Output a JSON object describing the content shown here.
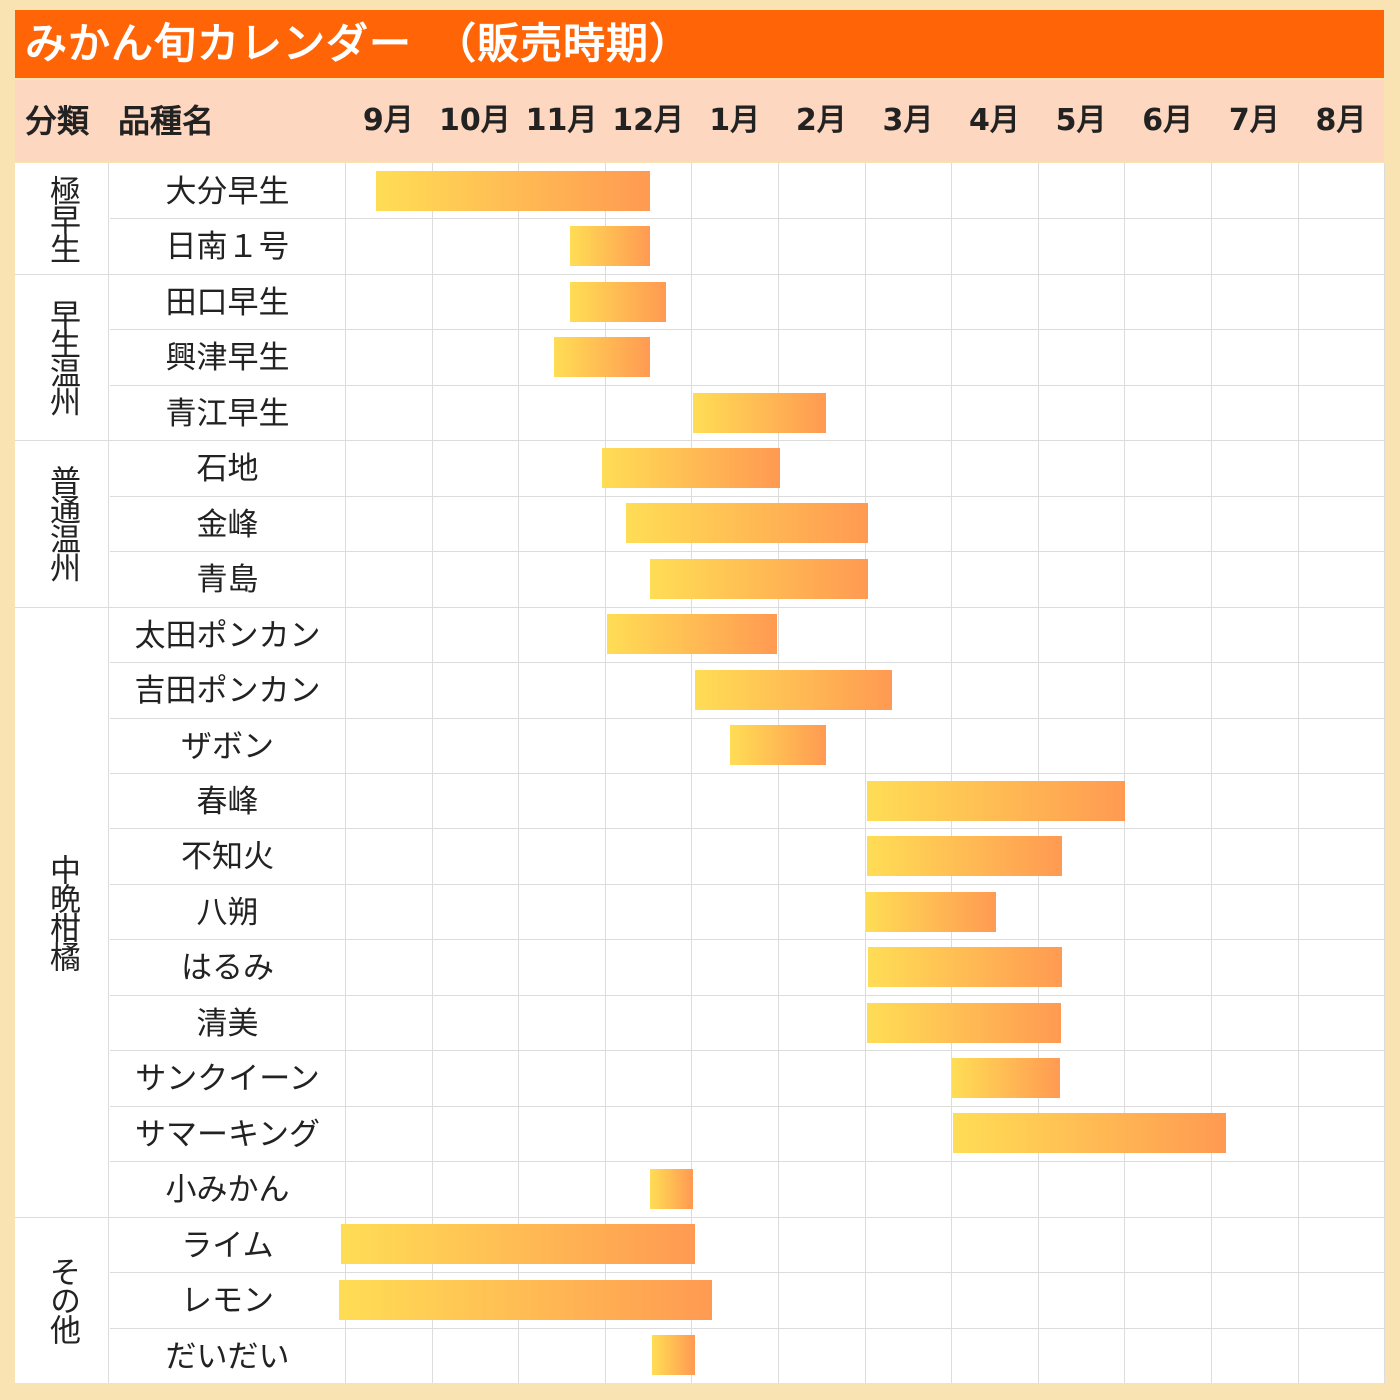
{
  "title": "みかん旬カレンダー　（販売時期）",
  "header": {
    "category": "分類",
    "variety": "品種名",
    "months": [
      "9月",
      "10月",
      "11月",
      "12月",
      "1月",
      "2月",
      "3月",
      "4月",
      "5月",
      "6月",
      "7月",
      "8月"
    ]
  },
  "colors": {
    "title_bg": "#ff6407",
    "header_bg": "#fdd7bf",
    "bar_start": "#ffdd55",
    "bar_end": "#ff9a52"
  },
  "chart_data": {
    "type": "gantt",
    "x_unit": "months offset from start of September",
    "categories": [
      {
        "label": "極早生",
        "rows": [
          0,
          1
        ]
      },
      {
        "label": "早生温州",
        "rows": [
          2,
          4
        ]
      },
      {
        "label": "普通温州",
        "rows": [
          5,
          7
        ]
      },
      {
        "label": "中晩柑橘",
        "rows": [
          8,
          18
        ]
      },
      {
        "label": "その他",
        "rows": [
          19,
          21
        ]
      }
    ],
    "items": [
      {
        "name": "大分早生",
        "start": 0.36,
        "end": 3.52
      },
      {
        "name": "日南１号",
        "start": 2.6,
        "end": 3.52
      },
      {
        "name": "田口早生",
        "start": 2.6,
        "end": 3.71
      },
      {
        "name": "興津早生",
        "start": 2.41,
        "end": 3.52
      },
      {
        "name": "青江早生",
        "start": 4.02,
        "end": 5.55
      },
      {
        "name": "石地",
        "start": 2.97,
        "end": 5.02
      },
      {
        "name": "金峰",
        "start": 3.24,
        "end": 6.04
      },
      {
        "name": "青島",
        "start": 3.52,
        "end": 6.04
      },
      {
        "name": "太田ポンカン",
        "start": 3.03,
        "end": 4.99
      },
      {
        "name": "吉田ポンカン",
        "start": 4.04,
        "end": 6.32
      },
      {
        "name": "ザボン",
        "start": 4.45,
        "end": 5.55
      },
      {
        "name": "春峰",
        "start": 6.03,
        "end": 9.01
      },
      {
        "name": "不知火",
        "start": 6.03,
        "end": 8.28
      },
      {
        "name": "八朔",
        "start": 6.02,
        "end": 7.52
      },
      {
        "name": "はるみ",
        "start": 6.04,
        "end": 8.28
      },
      {
        "name": "清美",
        "start": 6.03,
        "end": 8.27
      },
      {
        "name": "サンクイーン",
        "start": 7.01,
        "end": 8.26
      },
      {
        "name": "サマーキング",
        "start": 7.02,
        "end": 10.17
      },
      {
        "name": "小みかん",
        "start": 3.52,
        "end": 4.02
      },
      {
        "name": "ライム",
        "start": -0.05,
        "end": 4.04
      },
      {
        "name": "レモン",
        "start": -0.07,
        "end": 4.24
      },
      {
        "name": "だいだい",
        "start": 3.55,
        "end": 4.04
      }
    ]
  }
}
